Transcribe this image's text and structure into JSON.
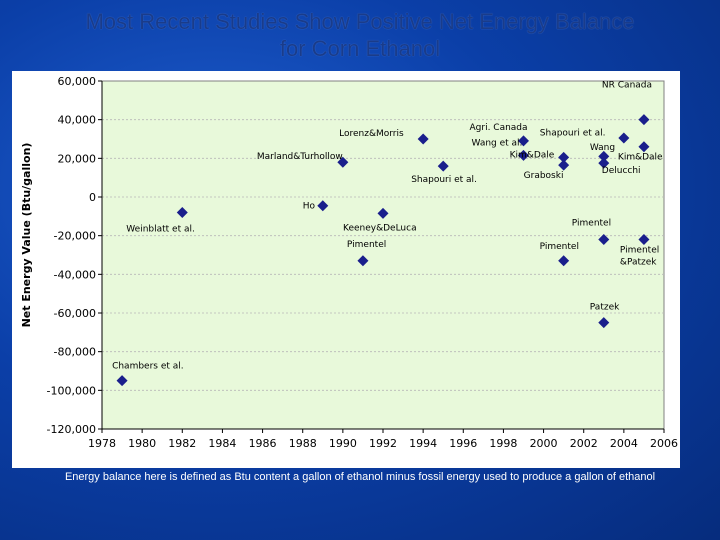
{
  "slide": {
    "title_line1": "Most Recent Studies Show Positive Net Energy Balance",
    "title_line2": "for Corn Ethanol",
    "footnote": "Energy balance here is defined as Btu content a gallon of ethanol minus fossil energy used to produce a gallon of ethanol"
  },
  "colors": {
    "plot_background": "#e8f9da",
    "marker": "#1a1f8c",
    "grid": "#b8b8b8"
  },
  "chart_data": {
    "type": "scatter",
    "title": "",
    "xlabel": "",
    "ylabel": "Net Energy Value (Btu/gallon)",
    "xlim": [
      1978,
      2006
    ],
    "ylim": [
      -120000,
      60000
    ],
    "x_ticks": [
      1978,
      1980,
      1982,
      1984,
      1986,
      1988,
      1990,
      1992,
      1994,
      1996,
      1998,
      2000,
      2002,
      2004,
      2006
    ],
    "x_tick_labels": [
      "1978",
      "1980",
      "1982",
      "1984",
      "1986",
      "1988",
      "1990",
      "1992",
      "1994",
      "1996",
      "1998",
      "2000",
      "2002",
      "2004",
      "2006"
    ],
    "y_ticks": [
      60000,
      40000,
      20000,
      0,
      -20000,
      -40000,
      -60000,
      -80000,
      -100000,
      -120000
    ],
    "y_tick_labels": [
      "60,000",
      "40,000",
      "20,000",
      "0",
      "-20,000",
      "-40,000",
      "-60,000",
      "-80,000",
      "-100,000",
      "-120,000"
    ],
    "grid": true,
    "points": [
      {
        "x": 1979.0,
        "y": -95000,
        "label": "Chambers et al."
      },
      {
        "x": 1982.0,
        "y": -8000,
        "label": "Weinblatt et al."
      },
      {
        "x": 1989.0,
        "y": -4500,
        "label": "Ho"
      },
      {
        "x": 1990.0,
        "y": 18000,
        "label": "Marland&Turhollow"
      },
      {
        "x": 1991.0,
        "y": -33000,
        "label": "Pimentel"
      },
      {
        "x": 1992.0,
        "y": -8500,
        "label": "Keeney&DeLuca"
      },
      {
        "x": 1994.0,
        "y": 30000,
        "label": "Lorenz&Morris"
      },
      {
        "x": 1995.0,
        "y": 16000,
        "label": "Shapouri et al."
      },
      {
        "x": 1999.0,
        "y": 29000,
        "label": "Agri. Canada"
      },
      {
        "x": 1999.0,
        "y": 21500,
        "label": "Wang et al."
      },
      {
        "x": 2001.0,
        "y": 20500,
        "label": "Kim&Dale"
      },
      {
        "x": 2001.0,
        "y": 16500,
        "label": "Graboski"
      },
      {
        "x": 2001.0,
        "y": -33000,
        "label": "Pimentel"
      },
      {
        "x": 2003.0,
        "y": 21000,
        "label": "Shapouri et al."
      },
      {
        "x": 2003.0,
        "y": 17500,
        "label": "Delucchi"
      },
      {
        "x": 2003.0,
        "y": -22000,
        "label": "Pimentel"
      },
      {
        "x": 2003.0,
        "y": -65000,
        "label": "Patzek"
      },
      {
        "x": 2004.0,
        "y": 30500,
        "label": "Wang"
      },
      {
        "x": 2005.0,
        "y": 40000,
        "label": "NR Canada"
      },
      {
        "x": 2005.0,
        "y": 26000,
        "label": "Kim&Dale"
      },
      {
        "x": 2005.0,
        "y": -22000,
        "label": "Pimentel &Patzek"
      }
    ]
  }
}
